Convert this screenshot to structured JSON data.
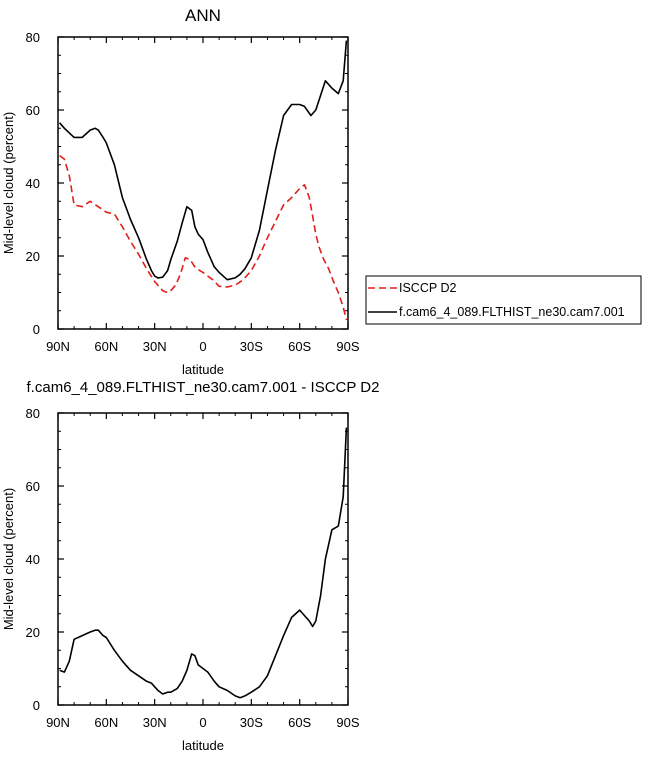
{
  "chart_data": [
    {
      "type": "line",
      "title": "ANN",
      "xlabel": "latitude",
      "ylabel": "Mid-level cloud (percent)",
      "xlim": [
        90,
        -90
      ],
      "ylim": [
        0,
        80
      ],
      "x_tick_values": [
        90,
        60,
        30,
        0,
        -30,
        -60,
        -90
      ],
      "x_tick_labels": [
        "90N",
        "60N",
        "30N",
        "0",
        "30S",
        "60S",
        "90S"
      ],
      "y_tick_values": [
        0,
        20,
        40,
        60,
        80
      ],
      "y_tick_labels": [
        "0",
        "20",
        "40",
        "60",
        "80"
      ],
      "legend_position": "right",
      "series": [
        {
          "name": "ISCCP D2",
          "color": "#e0201a",
          "style": "dashed",
          "x": [
            89,
            86,
            83,
            80,
            75,
            70,
            65,
            60,
            55,
            50,
            45,
            40,
            35,
            30,
            25,
            22,
            20,
            17,
            14,
            11,
            8,
            5,
            2,
            0,
            -3,
            -6,
            -10,
            -15,
            -20,
            -25,
            -30,
            -35,
            -40,
            -45,
            -50,
            -55,
            -60,
            -63,
            -66,
            -68,
            -70,
            -72,
            -75,
            -78,
            -81,
            -84,
            -87,
            -89
          ],
          "values": [
            47.5,
            46.5,
            42,
            34,
            33.5,
            35,
            33.5,
            32,
            31.5,
            28,
            24,
            20.5,
            16.5,
            13,
            10.5,
            10,
            10.5,
            12,
            15,
            19.5,
            19,
            17,
            16,
            15.5,
            14.5,
            13.5,
            11.7,
            11.5,
            12,
            13.5,
            16,
            20,
            25,
            29.5,
            34,
            36,
            38.5,
            39.5,
            36,
            31,
            26,
            22.5,
            19,
            16.5,
            13,
            10,
            6,
            2.5
          ]
        },
        {
          "name": "f.cam6_4_089.FLTHIST_ne30.cam7.001",
          "color": "#000000",
          "style": "solid",
          "x": [
            89,
            86,
            80,
            75,
            70,
            67,
            65,
            62,
            60,
            55,
            50,
            45,
            40,
            35,
            32,
            30,
            28,
            25,
            22,
            20,
            16,
            13,
            10,
            7,
            5,
            3,
            0,
            -3,
            -7,
            -10,
            -15,
            -20,
            -23,
            -26,
            -30,
            -35,
            -40,
            -45,
            -50,
            -55,
            -60,
            -63,
            -67,
            -70,
            -73,
            -76,
            -80,
            -84,
            -87,
            -89
          ],
          "values": [
            56.5,
            55,
            52.5,
            52.5,
            54.5,
            55,
            54.5,
            52.5,
            51,
            45,
            36,
            30,
            25,
            19,
            16,
            14.5,
            14,
            14.2,
            16,
            19,
            24,
            29,
            33.5,
            32.5,
            28,
            26,
            24.5,
            21,
            17,
            15.5,
            13.5,
            14,
            15,
            16.5,
            19.5,
            27,
            38,
            49,
            58.5,
            61.5,
            61.5,
            61,
            58.5,
            60,
            64,
            68,
            66,
            64.5,
            68,
            79
          ]
        }
      ]
    },
    {
      "type": "line",
      "title": "f.cam6_4_089.FLTHIST_ne30.cam7.001 - ISCCP D2",
      "xlabel": "latitude",
      "ylabel": "Mid-level cloud (percent)",
      "xlim": [
        90,
        -90
      ],
      "ylim": [
        0,
        80
      ],
      "x_tick_values": [
        90,
        60,
        30,
        0,
        -30,
        -60,
        -90
      ],
      "x_tick_labels": [
        "90N",
        "60N",
        "30N",
        "0",
        "30S",
        "60S",
        "90S"
      ],
      "y_tick_values": [
        0,
        20,
        40,
        60,
        80
      ],
      "y_tick_labels": [
        "0",
        "20",
        "40",
        "60",
        "80"
      ],
      "series": [
        {
          "color": "#000000",
          "style": "solid",
          "x": [
            89,
            86,
            83,
            80,
            75,
            70,
            67,
            65,
            62,
            60,
            55,
            50,
            45,
            40,
            35,
            32,
            30,
            28,
            25,
            22,
            20,
            16,
            13,
            10,
            7,
            5,
            3,
            0,
            -3,
            -7,
            -10,
            -15,
            -20,
            -23,
            -26,
            -30,
            -35,
            -40,
            -45,
            -50,
            -55,
            -60,
            -63,
            -66,
            -68,
            -70,
            -73,
            -76,
            -80,
            -84,
            -87,
            -89
          ],
          "values": [
            9.5,
            9,
            12,
            18,
            19,
            20,
            20.5,
            20.5,
            19,
            18.5,
            15,
            12,
            9.5,
            8,
            6.5,
            6,
            5,
            4,
            3,
            3.5,
            3.5,
            4.5,
            6.5,
            9.5,
            14,
            13.5,
            11,
            10,
            9,
            6.5,
            5,
            4,
            2.5,
            2,
            2.5,
            3.5,
            5,
            8,
            13.5,
            19,
            24,
            26,
            24.5,
            23,
            21.5,
            23,
            30,
            40,
            48,
            49,
            57,
            76
          ]
        }
      ]
    }
  ]
}
